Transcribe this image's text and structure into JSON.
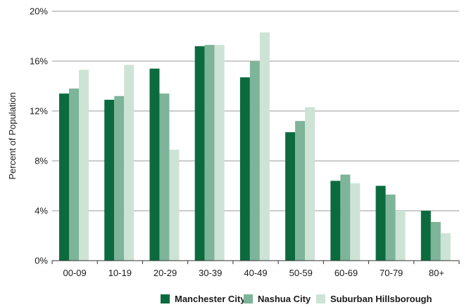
{
  "chart_data": {
    "type": "bar",
    "title": "",
    "xlabel": "",
    "ylabel": "Percent of Population",
    "ylim": [
      0,
      20
    ],
    "yticks": [
      0,
      4,
      8,
      12,
      16,
      20
    ],
    "ytick_labels": [
      "0%",
      "4%",
      "8%",
      "12%",
      "16%",
      "20%"
    ],
    "grid": true,
    "legend_position": "bottom",
    "categories": [
      "00-09",
      "10-19",
      "20-29",
      "30-39",
      "40-49",
      "50-59",
      "60-69",
      "70-79",
      "80+"
    ],
    "series": [
      {
        "name": "Manchester City",
        "color": "#0b6b3f",
        "values": [
          13.4,
          12.9,
          15.4,
          17.2,
          14.7,
          10.3,
          6.4,
          6.0,
          4.0
        ]
      },
      {
        "name": "Nashua City",
        "color": "#7db49a",
        "values": [
          13.8,
          13.2,
          13.4,
          17.3,
          16.0,
          11.2,
          6.9,
          5.3,
          3.1
        ]
      },
      {
        "name": "Suburban Hillsborough",
        "color": "#cde3d6",
        "values": [
          15.3,
          15.7,
          8.9,
          17.3,
          18.3,
          12.3,
          6.2,
          4.0,
          2.2
        ]
      }
    ]
  }
}
